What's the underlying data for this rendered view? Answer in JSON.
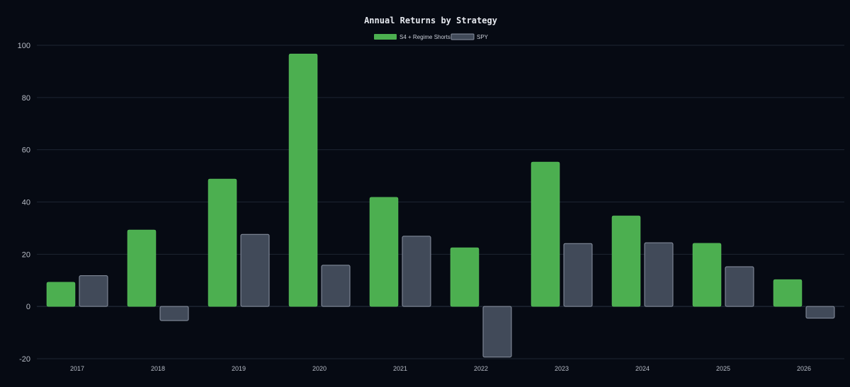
{
  "chart_data": {
    "type": "bar",
    "title": "Annual Returns by Strategy",
    "categories": [
      "2017",
      "2018",
      "2019",
      "2020",
      "2021",
      "2022",
      "2023",
      "2024",
      "2025",
      "2026"
    ],
    "series": [
      {
        "name": "S4 + Regime Shorts",
        "color": "#4caf50",
        "values": [
          9.3,
          29.3,
          48.8,
          96.7,
          41.8,
          22.5,
          55.3,
          34.7,
          24.2,
          10.3
        ]
      },
      {
        "name": "SPY",
        "color": "#414a59",
        "values": [
          11.8,
          -5.4,
          27.6,
          15.8,
          26.9,
          -19.4,
          24.1,
          24.4,
          15.2,
          -4.5
        ]
      }
    ],
    "xlabel": "",
    "ylabel": "",
    "ylim": [
      -20,
      100
    ],
    "yticks": [
      -20,
      0,
      20,
      40,
      60,
      80,
      100
    ],
    "grid": true,
    "legend_position": "top-center"
  }
}
